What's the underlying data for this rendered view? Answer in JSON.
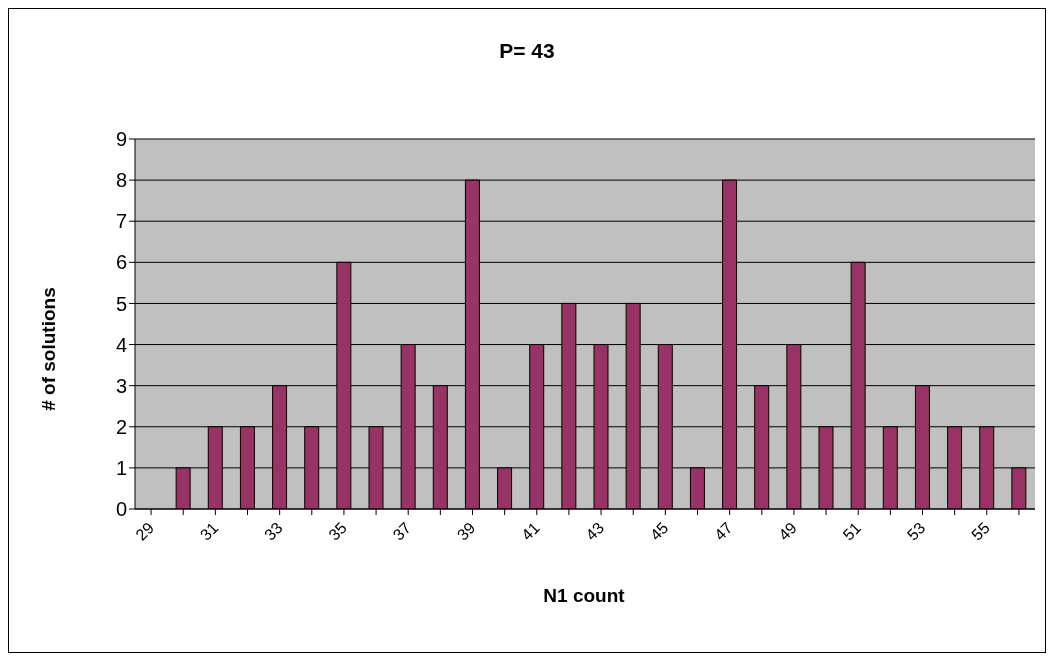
{
  "chart_data": {
    "type": "bar",
    "title": "P= 43",
    "xlabel": "N1 count",
    "ylabel": "# of solutions",
    "categories": [
      "29",
      null,
      "31",
      null,
      "33",
      null,
      "35",
      null,
      "37",
      null,
      "39",
      null,
      "41",
      null,
      "43",
      null,
      "45",
      null,
      "47",
      null,
      "49",
      null,
      "51",
      null,
      "53",
      null,
      "55",
      null
    ],
    "values": [
      0,
      1,
      2,
      2,
      3,
      2,
      6,
      2,
      4,
      3,
      8,
      1,
      4,
      5,
      4,
      5,
      4,
      1,
      8,
      3,
      4,
      2,
      6,
      2,
      3,
      2,
      2,
      1
    ],
    "color": "#993366",
    "ylim": [
      0,
      9
    ],
    "yticks": [
      0,
      1,
      2,
      3,
      4,
      5,
      6,
      7,
      8,
      9
    ],
    "grid": "y"
  }
}
